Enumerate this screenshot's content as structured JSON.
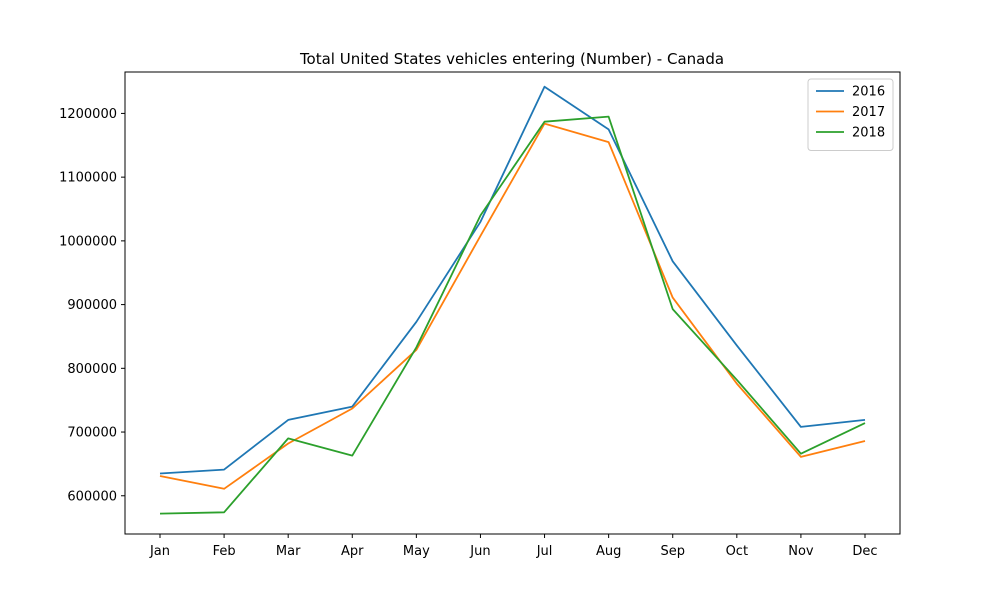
{
  "chart_data": {
    "type": "line",
    "title": "Total United States vehicles entering (Number) - Canada",
    "xlabel": "",
    "ylabel": "",
    "categories": [
      "Jan",
      "Feb",
      "Mar",
      "Apr",
      "May",
      "Jun",
      "Jul",
      "Aug",
      "Sep",
      "Oct",
      "Nov",
      "Dec"
    ],
    "ylim": [
      540000,
      1265000
    ],
    "yticks": [
      600000,
      700000,
      800000,
      900000,
      1000000,
      1100000,
      1200000
    ],
    "ytick_labels": [
      "600000",
      "700000",
      "800000",
      "900000",
      "1000000",
      "1100000",
      "1200000"
    ],
    "grid": false,
    "legend_position": "top-right",
    "series": [
      {
        "name": "2016",
        "color": "#1f77b4",
        "values": [
          635000,
          641000,
          719000,
          740000,
          873000,
          1030000,
          1242000,
          1175000,
          968000,
          836000,
          708000,
          719000
        ]
      },
      {
        "name": "2017",
        "color": "#ff7f0e",
        "values": [
          631000,
          611000,
          682000,
          737000,
          829000,
          1008000,
          1184000,
          1155000,
          911000,
          776000,
          661000,
          686000
        ]
      },
      {
        "name": "2018",
        "color": "#2ca02c",
        "values": [
          572000,
          574000,
          690000,
          663000,
          833000,
          1040000,
          1187000,
          1195000,
          893000,
          782000,
          666000,
          714000
        ]
      }
    ]
  }
}
